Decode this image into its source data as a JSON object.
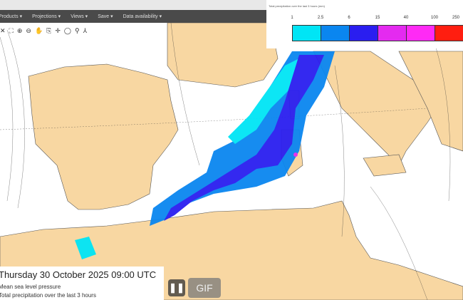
{
  "menu": {
    "items": [
      "Products ▾",
      "Projections ▾",
      "Views ▾",
      "Save ▾",
      "Data availability ▾"
    ]
  },
  "tools": [
    "✕",
    "⛶",
    "⊕",
    "⊖",
    "✋",
    "⎘",
    "✛",
    "◯",
    "⚲",
    "⅄"
  ],
  "legend": {
    "title": "Total precipitation over the last 3 hours (mm)",
    "labels": [
      "1",
      "2.5",
      "6",
      "15",
      "40",
      "100",
      "250"
    ],
    "colors": [
      "#00e5f5",
      "#0a86f0",
      "#2a1ef0",
      "#e42af0",
      "#ff2af5",
      "#ff1e10"
    ]
  },
  "info": {
    "date": "Thursday 30 October 2025 09:00 UTC",
    "line1": "Mean sea level pressure",
    "line2": "Total precipitation over the last 3 hours"
  },
  "controls": {
    "pause": "❚❚",
    "gif": "GIF"
  },
  "colors": {
    "land": "#f8d7a2",
    "sea": "#ffffff",
    "menubar": "#4a4a4a"
  }
}
